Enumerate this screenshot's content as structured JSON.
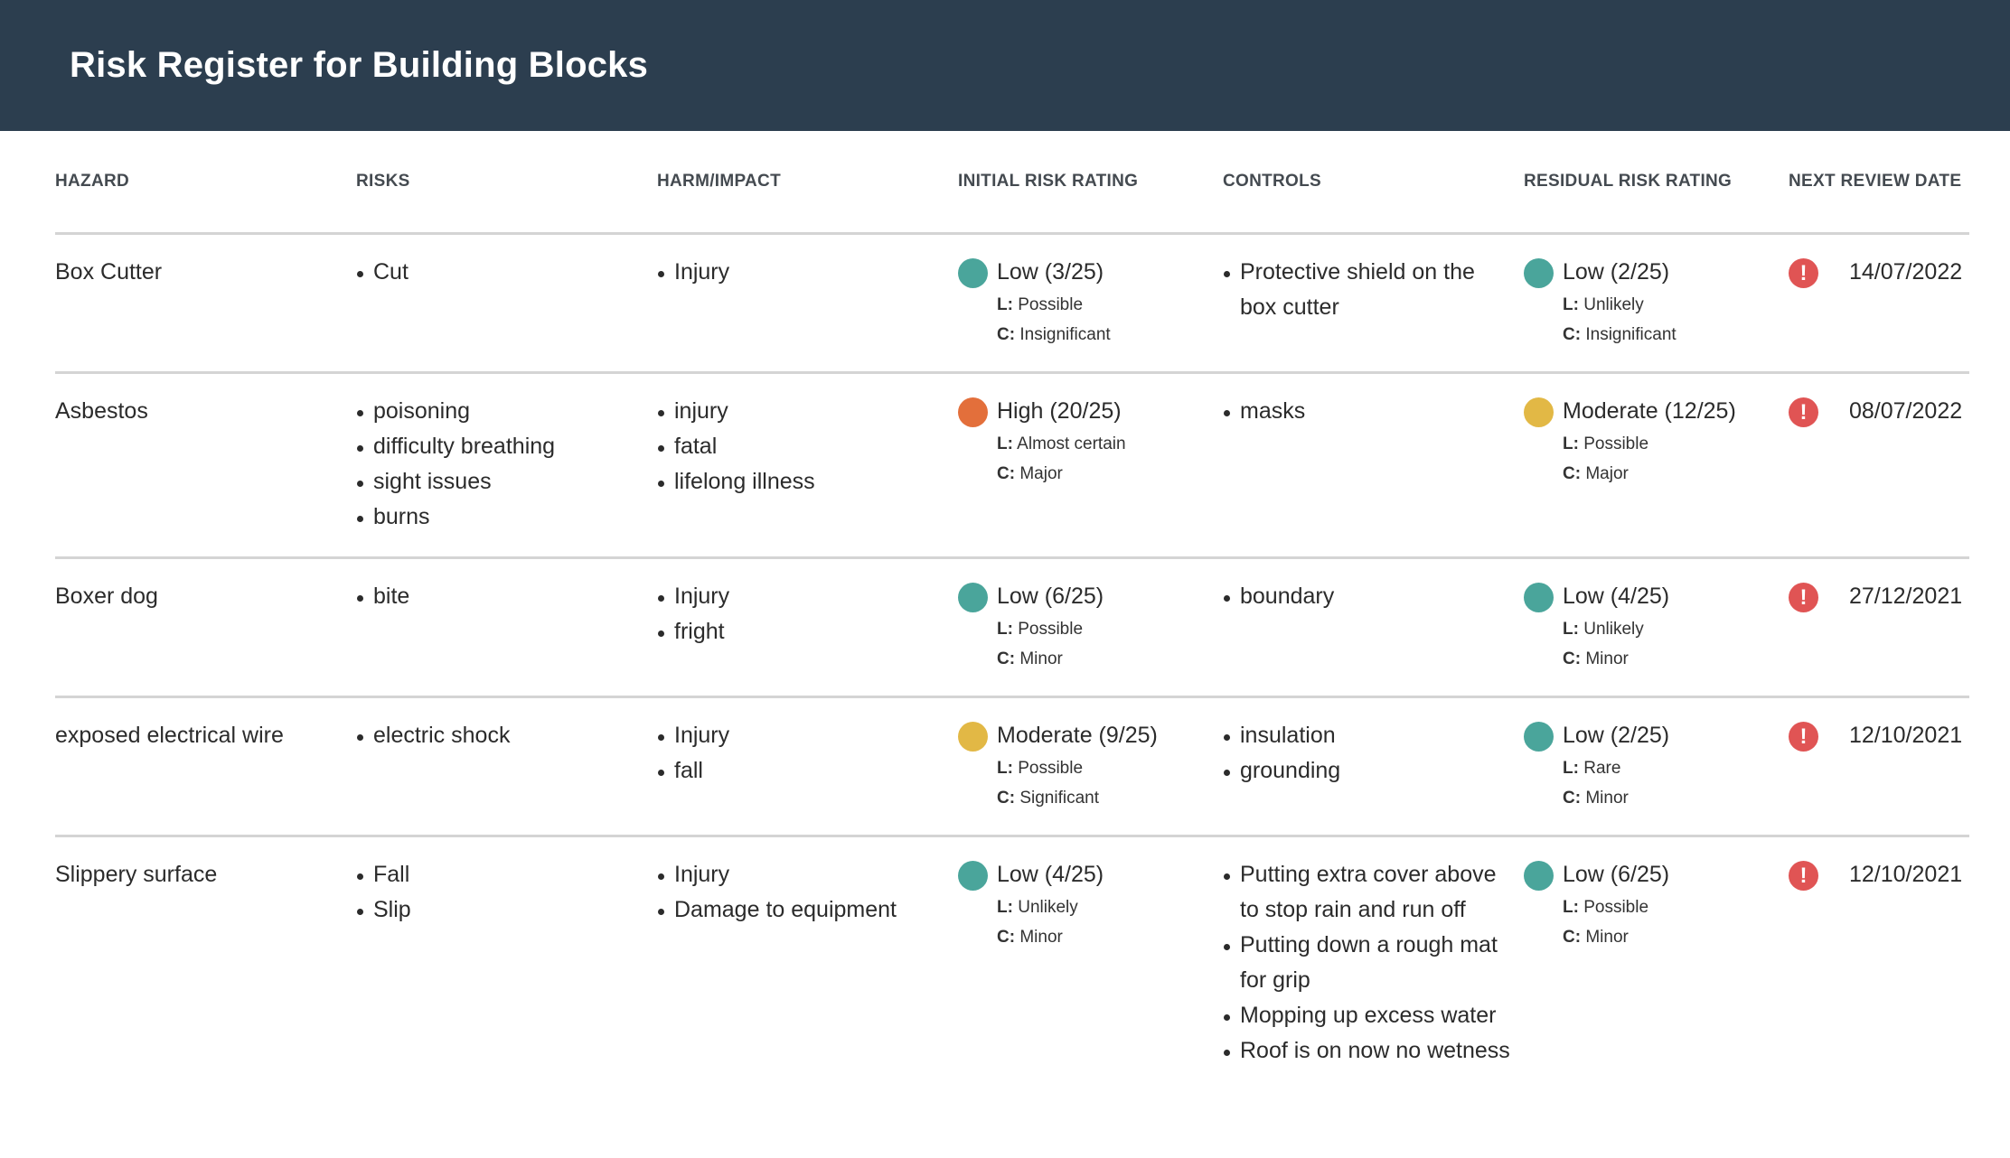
{
  "header": {
    "title": "Risk Register for Building Blocks"
  },
  "colors": {
    "header_bg": "#2c3e4f",
    "low": "#4aa59b",
    "moderate": "#e2b845",
    "high": "#e36f3b",
    "alert": "#e05454"
  },
  "icons": {
    "rating_dot": "circle",
    "review_alert": "exclamation-circle-icon"
  },
  "columns": {
    "hazard": "HAZARD",
    "risks": "RISKS",
    "harm": "HARM/IMPACT",
    "initial": "INITIAL RISK RATING",
    "controls": "CONTROLS",
    "residual": "RESIDUAL RISK RATING",
    "review": "NEXT REVIEW DATE"
  },
  "labels": {
    "likelihood_prefix": "L:",
    "consequence_prefix": "C:",
    "alert_glyph": "!"
  },
  "rows": [
    {
      "hazard": "Box Cutter",
      "risks": [
        "Cut"
      ],
      "harm": [
        "Injury"
      ],
      "initial": {
        "level": "Low (3/25)",
        "likelihood": "Possible",
        "consequence": "Insignificant",
        "color": "#4aa59b"
      },
      "controls": [
        "Protective shield on the box cutter"
      ],
      "residual": {
        "level": "Low (2/25)",
        "likelihood": "Unlikely",
        "consequence": "Insignificant",
        "color": "#4aa59b"
      },
      "review": "14/07/2022"
    },
    {
      "hazard": "Asbestos",
      "risks": [
        "poisoning",
        "difficulty breathing",
        "sight issues",
        "burns"
      ],
      "harm": [
        "injury",
        "fatal",
        "lifelong illness"
      ],
      "initial": {
        "level": "High (20/25)",
        "likelihood": "Almost certain",
        "consequence": "Major",
        "color": "#e36f3b"
      },
      "controls": [
        "masks"
      ],
      "residual": {
        "level": "Moderate (12/25)",
        "likelihood": "Possible",
        "consequence": "Major",
        "color": "#e2b845"
      },
      "review": "08/07/2022"
    },
    {
      "hazard": "Boxer dog",
      "risks": [
        "bite"
      ],
      "harm": [
        "Injury",
        "fright"
      ],
      "initial": {
        "level": "Low (6/25)",
        "likelihood": "Possible",
        "consequence": "Minor",
        "color": "#4aa59b"
      },
      "controls": [
        "boundary"
      ],
      "residual": {
        "level": "Low (4/25)",
        "likelihood": "Unlikely",
        "consequence": "Minor",
        "color": "#4aa59b"
      },
      "review": "27/12/2021"
    },
    {
      "hazard": "exposed electrical wire",
      "risks": [
        "electric shock"
      ],
      "harm": [
        "Injury",
        "fall"
      ],
      "initial": {
        "level": "Moderate (9/25)",
        "likelihood": "Possible",
        "consequence": "Significant",
        "color": "#e2b845"
      },
      "controls": [
        "insulation",
        "grounding"
      ],
      "residual": {
        "level": "Low (2/25)",
        "likelihood": "Rare",
        "consequence": "Minor",
        "color": "#4aa59b"
      },
      "review": "12/10/2021"
    },
    {
      "hazard": "Slippery surface",
      "risks": [
        "Fall",
        "Slip"
      ],
      "harm": [
        "Injury",
        "Damage to equipment"
      ],
      "initial": {
        "level": "Low (4/25)",
        "likelihood": "Unlikely",
        "consequence": "Minor",
        "color": "#4aa59b"
      },
      "controls": [
        "Putting extra cover above to stop rain and run off",
        "Putting down a rough mat for grip",
        "Mopping up excess water",
        "Roof is on now no wetness"
      ],
      "residual": {
        "level": "Low (6/25)",
        "likelihood": "Possible",
        "consequence": "Minor",
        "color": "#4aa59b"
      },
      "review": "12/10/2021"
    }
  ]
}
